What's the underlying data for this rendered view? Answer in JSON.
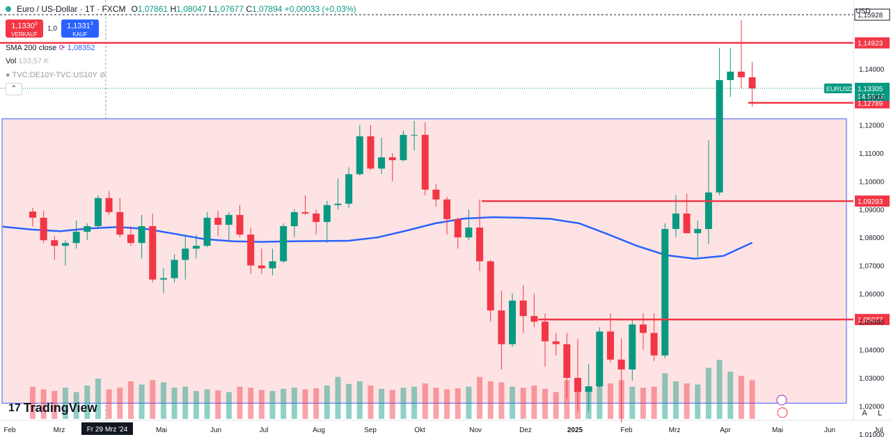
{
  "header": {
    "symbol": "Euro / US-Dollar · 1T · FXCM",
    "ohlc": {
      "o_label": "O",
      "o": "1,07861",
      "h_label": "H",
      "h": "1,08047",
      "l_label": "L",
      "l": "1,07677",
      "c_label": "C",
      "c": "1,07894",
      "change": "+0,00033 (+0,03%)"
    },
    "currency": "USD"
  },
  "trade": {
    "sell_price": "1,1330",
    "sell_sup": "3",
    "sell_label": "VERKAUF",
    "spread": "1,0",
    "buy_price": "1,1331",
    "buy_sup": "3",
    "buy_label": "KAUF"
  },
  "indicators": {
    "sma_label": "SMA 200 close",
    "sma_value": "1,08352",
    "vol_label": "Vol",
    "vol_value": "133,57 K",
    "compare_label": "TVC:DE10Y-TVC:US10Y"
  },
  "logo": {
    "text": "TradingView",
    "mark": "17"
  },
  "colors": {
    "up": "#089981",
    "down": "#f23645",
    "sma": "#2962ff",
    "level": "#f23645",
    "zone_fill": "#fde3e3",
    "zone_border": "#3d5afe"
  },
  "chart_data": {
    "type": "candlestick",
    "ylim": [
      1.0149,
      1.1645
    ],
    "y_ticks": [
      "1,14000",
      "1,13000",
      "1,12000",
      "1,11000",
      "1,10000",
      "1,09000",
      "1,08000",
      "1,07000",
      "1,06000",
      "1,05000",
      "1,04000",
      "1,03000",
      "1,02000",
      "1,01000"
    ],
    "x_labels": [
      "Feb",
      "Mrz",
      "Mai",
      "Jun",
      "Jul",
      "Aug",
      "Sep",
      "Okt",
      "Nov",
      "Dez",
      "2025",
      "Feb",
      "Mrz",
      "Apr",
      "Mai",
      "Jun",
      "Jul"
    ],
    "x_cursor_label": "Fr 29 Mrz '24",
    "levels": [
      {
        "value": 1.14923,
        "label": "1,14923"
      },
      {
        "value": 1.09293,
        "label": "1,09293"
      },
      {
        "value": 1.05077,
        "label": "1,05077"
      },
      {
        "value": 1.12789,
        "label": "1,12789"
      }
    ],
    "dashed_level": {
      "value": 1.15928,
      "label": "1,15928"
    },
    "current": {
      "symbol": "EURUSD",
      "value": "1,13305",
      "countdown": "14:58:16"
    },
    "zone": {
      "top": 1.1222,
      "bottom": 1.021
    },
    "sma200": [
      1.0838,
      1.0828,
      1.0822,
      1.0832,
      1.0837,
      1.083,
      1.0812,
      1.0794,
      1.0786,
      1.0784,
      1.0786,
      1.0787,
      1.0788,
      1.08,
      1.0824,
      1.085,
      1.0867,
      1.0872,
      1.087,
      1.0866,
      1.085,
      1.0811,
      1.077,
      1.0737,
      1.0724,
      1.0734,
      1.0781
    ],
    "candles": [
      {
        "d": "2024-01-22",
        "o": 1.0892,
        "h": 1.0905,
        "l": 1.084,
        "c": 1.087
      },
      {
        "d": "2024-01-29",
        "o": 1.087,
        "h": 1.0895,
        "l": 1.078,
        "c": 1.079
      },
      {
        "d": "2024-02-05",
        "o": 1.079,
        "h": 1.0805,
        "l": 1.072,
        "c": 1.077
      },
      {
        "d": "2024-02-12",
        "o": 1.077,
        "h": 1.079,
        "l": 1.07,
        "c": 1.078
      },
      {
        "d": "2024-02-19",
        "o": 1.078,
        "h": 1.086,
        "l": 1.076,
        "c": 1.082
      },
      {
        "d": "2024-02-26",
        "o": 1.082,
        "h": 1.085,
        "l": 1.079,
        "c": 1.084
      },
      {
        "d": "2024-03-04",
        "o": 1.084,
        "h": 1.095,
        "l": 1.083,
        "c": 1.094
      },
      {
        "d": "2024-03-11",
        "o": 1.094,
        "h": 1.0965,
        "l": 1.088,
        "c": 1.089
      },
      {
        "d": "2024-03-18",
        "o": 1.089,
        "h": 1.094,
        "l": 1.08,
        "c": 1.081
      },
      {
        "d": "2024-03-25",
        "o": 1.081,
        "h": 1.084,
        "l": 1.077,
        "c": 1.078
      },
      {
        "d": "2024-04-01",
        "o": 1.078,
        "h": 1.088,
        "l": 1.0725,
        "c": 1.084
      },
      {
        "d": "2024-04-08",
        "o": 1.084,
        "h": 1.0885,
        "l": 1.064,
        "c": 1.065
      },
      {
        "d": "2024-04-15",
        "o": 1.065,
        "h": 1.069,
        "l": 1.06,
        "c": 1.0655
      },
      {
        "d": "2024-04-22",
        "o": 1.0655,
        "h": 1.074,
        "l": 1.064,
        "c": 1.072
      },
      {
        "d": "2024-04-29",
        "o": 1.072,
        "h": 1.081,
        "l": 1.065,
        "c": 1.076
      },
      {
        "d": "2024-05-06",
        "o": 1.076,
        "h": 1.081,
        "l": 1.0725,
        "c": 1.077
      },
      {
        "d": "2024-05-13",
        "o": 1.077,
        "h": 1.089,
        "l": 1.0765,
        "c": 1.087
      },
      {
        "d": "2024-05-20",
        "o": 1.087,
        "h": 1.0895,
        "l": 1.0805,
        "c": 1.0845
      },
      {
        "d": "2024-05-27",
        "o": 1.0845,
        "h": 1.089,
        "l": 1.079,
        "c": 1.088
      },
      {
        "d": "2024-06-03",
        "o": 1.088,
        "h": 1.0915,
        "l": 1.08,
        "c": 1.081
      },
      {
        "d": "2024-06-10",
        "o": 1.081,
        "h": 1.0835,
        "l": 1.067,
        "c": 1.07
      },
      {
        "d": "2024-06-17",
        "o": 1.07,
        "h": 1.076,
        "l": 1.067,
        "c": 1.069
      },
      {
        "d": "2024-06-24",
        "o": 1.069,
        "h": 1.076,
        "l": 1.0665,
        "c": 1.0715
      },
      {
        "d": "2024-07-01",
        "o": 1.0715,
        "h": 1.085,
        "l": 1.071,
        "c": 1.084
      },
      {
        "d": "2024-07-08",
        "o": 1.084,
        "h": 1.09,
        "l": 1.08,
        "c": 1.089
      },
      {
        "d": "2024-07-15",
        "o": 1.089,
        "h": 1.095,
        "l": 1.088,
        "c": 1.0885
      },
      {
        "d": "2024-07-22",
        "o": 1.0885,
        "h": 1.09,
        "l": 1.081,
        "c": 1.0855
      },
      {
        "d": "2024-07-29",
        "o": 1.0855,
        "h": 1.093,
        "l": 1.078,
        "c": 1.0915
      },
      {
        "d": "2024-08-05",
        "o": 1.0915,
        "h": 1.101,
        "l": 1.09,
        "c": 1.092
      },
      {
        "d": "2024-08-12",
        "o": 1.092,
        "h": 1.105,
        "l": 1.0905,
        "c": 1.1025
      },
      {
        "d": "2024-08-19",
        "o": 1.1025,
        "h": 1.12,
        "l": 1.102,
        "c": 1.116
      },
      {
        "d": "2024-08-26",
        "o": 1.116,
        "h": 1.12,
        "l": 1.104,
        "c": 1.1045
      },
      {
        "d": "2024-09-02",
        "o": 1.1045,
        "h": 1.1155,
        "l": 1.1025,
        "c": 1.1085
      },
      {
        "d": "2024-09-09",
        "o": 1.1085,
        "h": 1.11,
        "l": 1.1,
        "c": 1.1075
      },
      {
        "d": "2024-09-16",
        "o": 1.1075,
        "h": 1.118,
        "l": 1.107,
        "c": 1.1165
      },
      {
        "d": "2024-09-23",
        "o": 1.1165,
        "h": 1.1215,
        "l": 1.111,
        "c": 1.1165
      },
      {
        "d": "2024-09-30",
        "o": 1.1165,
        "h": 1.121,
        "l": 1.095,
        "c": 1.097
      },
      {
        "d": "2024-10-07",
        "o": 1.097,
        "h": 1.099,
        "l": 1.091,
        "c": 1.0935
      },
      {
        "d": "2024-10-14",
        "o": 1.0935,
        "h": 1.0945,
        "l": 1.081,
        "c": 1.0865
      },
      {
        "d": "2024-10-21",
        "o": 1.0865,
        "h": 1.087,
        "l": 1.076,
        "c": 1.08
      },
      {
        "d": "2024-10-28",
        "o": 1.08,
        "h": 1.09,
        "l": 1.079,
        "c": 1.0835
      },
      {
        "d": "2024-11-04",
        "o": 1.0835,
        "h": 1.0935,
        "l": 1.068,
        "c": 1.0715
      },
      {
        "d": "2024-11-11",
        "o": 1.0715,
        "h": 1.072,
        "l": 1.05,
        "c": 1.054
      },
      {
        "d": "2024-11-18",
        "o": 1.054,
        "h": 1.061,
        "l": 1.033,
        "c": 1.042
      },
      {
        "d": "2024-11-25",
        "o": 1.042,
        "h": 1.06,
        "l": 1.041,
        "c": 1.0575
      },
      {
        "d": "2024-12-02",
        "o": 1.0575,
        "h": 1.063,
        "l": 1.046,
        "c": 1.052
      },
      {
        "d": "2024-12-09",
        "o": 1.052,
        "h": 1.06,
        "l": 1.048,
        "c": 1.05
      },
      {
        "d": "2024-12-16",
        "o": 1.05,
        "h": 1.053,
        "l": 1.034,
        "c": 1.043
      },
      {
        "d": "2024-12-23",
        "o": 1.043,
        "h": 1.046,
        "l": 1.038,
        "c": 1.042
      },
      {
        "d": "2024-12-30",
        "o": 1.042,
        "h": 1.046,
        "l": 1.0225,
        "c": 1.03
      },
      {
        "d": "2025-01-06",
        "o": 1.03,
        "h": 1.044,
        "l": 1.018,
        "c": 1.025
      },
      {
        "d": "2025-01-13",
        "o": 1.025,
        "h": 1.035,
        "l": 1.018,
        "c": 1.027
      },
      {
        "d": "2025-01-20",
        "o": 1.027,
        "h": 1.048,
        "l": 1.0265,
        "c": 1.0465
      },
      {
        "d": "2025-01-27",
        "o": 1.0465,
        "h": 1.053,
        "l": 1.0355,
        "c": 1.0365
      },
      {
        "d": "2025-02-03",
        "o": 1.0365,
        "h": 1.044,
        "l": 1.014,
        "c": 1.033
      },
      {
        "d": "2025-02-10",
        "o": 1.033,
        "h": 1.0505,
        "l": 1.029,
        "c": 1.049
      },
      {
        "d": "2025-02-17",
        "o": 1.049,
        "h": 1.053,
        "l": 1.04,
        "c": 1.046
      },
      {
        "d": "2025-02-24",
        "o": 1.046,
        "h": 1.053,
        "l": 1.036,
        "c": 1.038
      },
      {
        "d": "2025-03-03",
        "o": 1.038,
        "h": 1.085,
        "l": 1.037,
        "c": 1.083
      },
      {
        "d": "2025-03-10",
        "o": 1.083,
        "h": 1.095,
        "l": 1.08,
        "c": 1.0885
      },
      {
        "d": "2025-03-17",
        "o": 1.0885,
        "h": 1.0955,
        "l": 1.0815,
        "c": 1.0815
      },
      {
        "d": "2025-03-24",
        "o": 1.0815,
        "h": 1.086,
        "l": 1.073,
        "c": 1.083
      },
      {
        "d": "2025-03-31",
        "o": 1.083,
        "h": 1.1145,
        "l": 1.0775,
        "c": 1.096
      },
      {
        "d": "2025-04-07",
        "o": 1.096,
        "h": 1.1475,
        "l": 1.095,
        "c": 1.136
      },
      {
        "d": "2025-04-14",
        "o": 1.136,
        "h": 1.1475,
        "l": 1.13,
        "c": 1.139
      },
      {
        "d": "2025-04-21",
        "o": 1.139,
        "h": 1.1573,
        "l": 1.133,
        "c": 1.137
      },
      {
        "d": "2025-04-28",
        "o": 1.137,
        "h": 1.1425,
        "l": 1.1265,
        "c": 1.133
      }
    ],
    "volume": [
      60,
      55,
      52,
      58,
      50,
      62,
      75,
      55,
      58,
      70,
      64,
      72,
      68,
      58,
      60,
      52,
      55,
      53,
      50,
      60,
      58,
      54,
      52,
      56,
      58,
      55,
      57,
      62,
      78,
      65,
      70,
      62,
      56,
      54,
      58,
      60,
      66,
      58,
      55,
      57,
      60,
      78,
      70,
      68,
      60,
      58,
      62,
      56,
      50,
      72,
      66,
      60,
      62,
      66,
      72,
      60,
      58,
      60,
      85,
      70,
      66,
      64,
      95,
      110,
      88,
      80,
      72
    ]
  }
}
